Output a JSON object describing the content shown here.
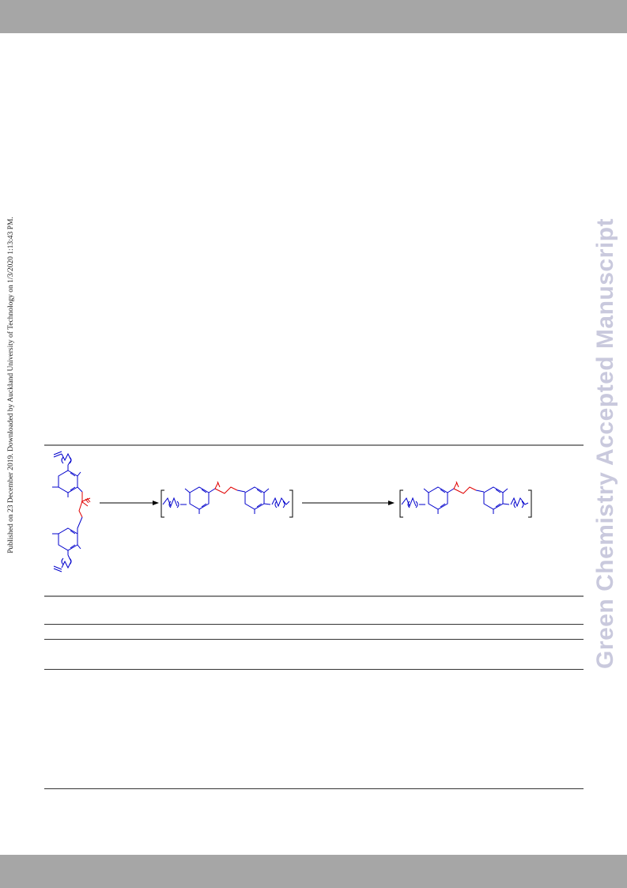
{
  "provenance_note": "Published on 23 December 2019. Downloaded by Auckland University of Technology on 1/3/2020 1:13:43 PM.",
  "watermark": "Green Chemistry Accepted Manuscript",
  "colors": {
    "header_bar": "#a6a6a6",
    "watermark": "#c9c9dd",
    "monomer_bonds": "#0000cc",
    "ester_linkage": "#e00000",
    "rules": "#888888"
  },
  "scheme": {
    "steps": [
      "monomer",
      "unsaturated-polyester",
      "saturated-polyester"
    ],
    "arrows": 2
  }
}
